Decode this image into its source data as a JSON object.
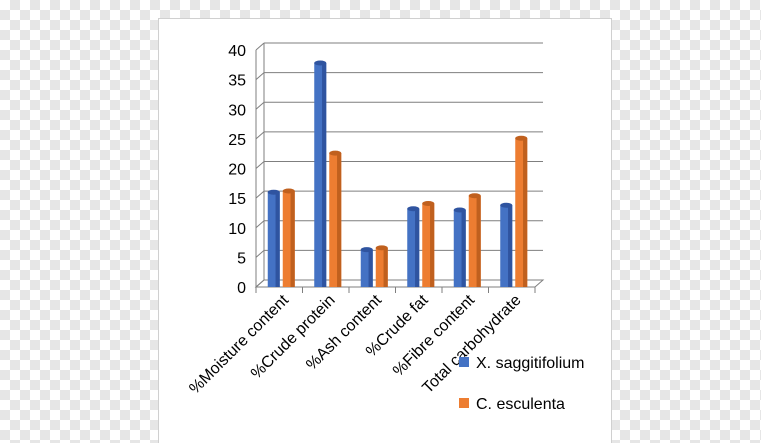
{
  "chart_data": {
    "type": "bar",
    "categories": [
      "%Moisture content",
      "%Crude protein",
      "%Ash content",
      "%Crude fat",
      "%Fibre content",
      "Total carbohydrate"
    ],
    "series": [
      {
        "name": "X. saggitifolium",
        "values": [
          16.0,
          37.8,
          6.3,
          13.2,
          13.0,
          13.8
        ]
      },
      {
        "name": "C. esculenta",
        "values": [
          16.2,
          22.6,
          6.6,
          14.1,
          15.4,
          25.1
        ]
      }
    ],
    "ylim": [
      0,
      40
    ],
    "yticks": [
      "0",
      "5",
      "10",
      "15",
      "20",
      "25",
      "30",
      "35",
      "40"
    ],
    "title": "",
    "xlabel": "",
    "ylabel": "",
    "grid": true,
    "legend_position": "right",
    "colors": {
      "series0": "#4472c4",
      "series0_dark": "#2f54a0",
      "series1": "#ed7d31",
      "series1_dark": "#c0601e"
    }
  }
}
